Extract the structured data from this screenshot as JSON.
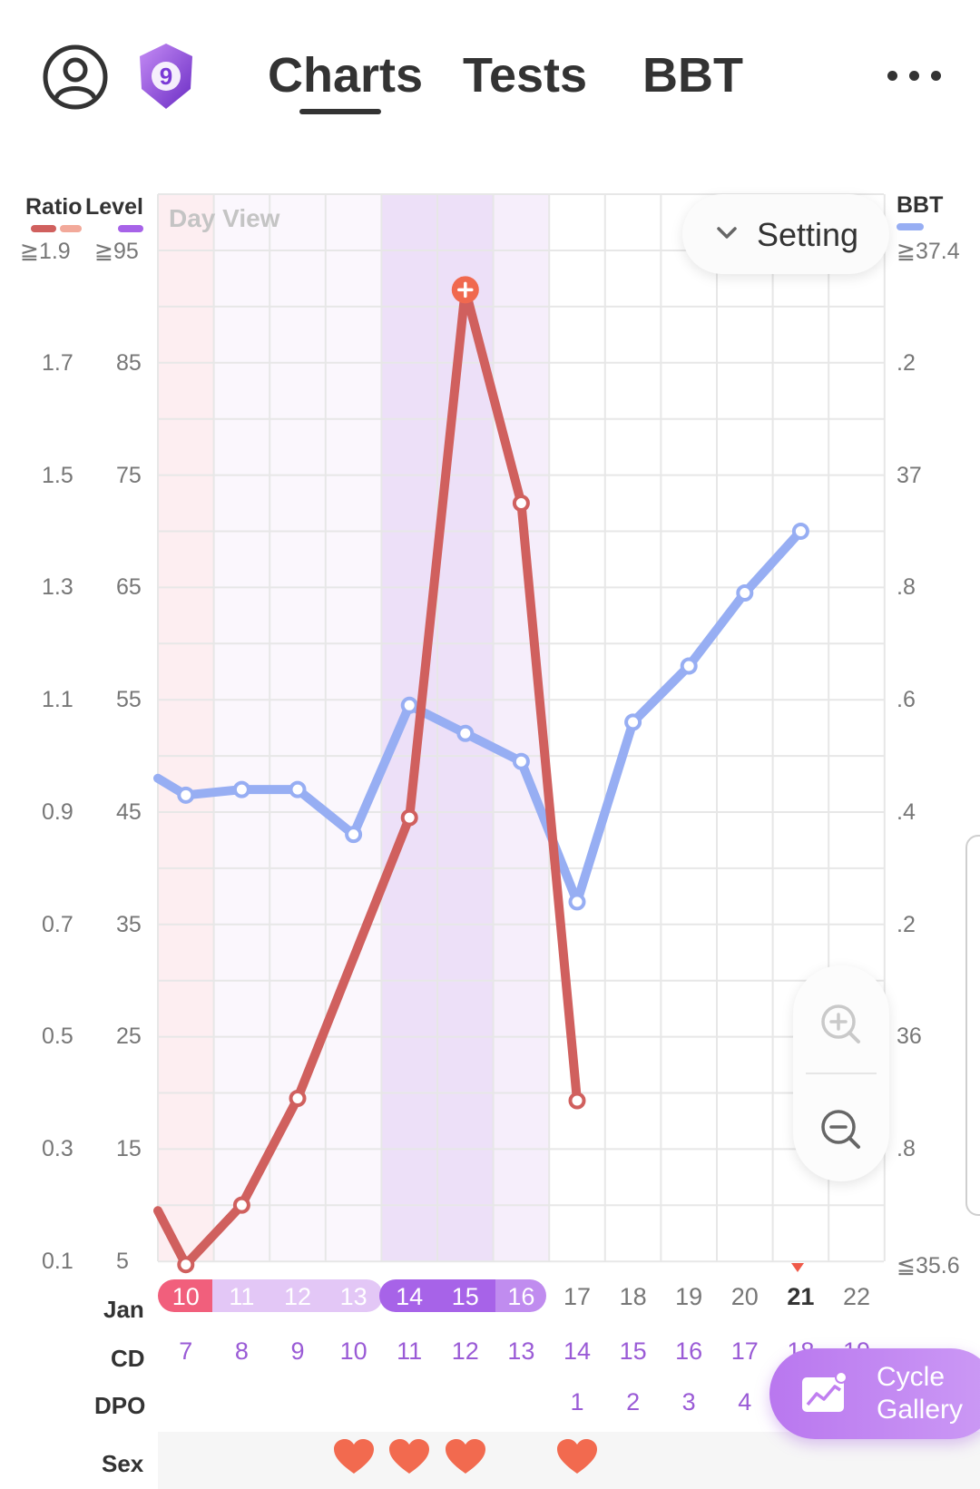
{
  "header": {
    "badge_number": "9",
    "tabs": [
      {
        "label": "Charts",
        "active": true
      },
      {
        "label": "Tests",
        "active": false
      },
      {
        "label": "BBT",
        "active": false
      }
    ],
    "icons": [
      "profile-icon",
      "level-badge-icon",
      "more-icon"
    ]
  },
  "axis": {
    "ratio_label": "Ratio",
    "level_label": "Level",
    "bbt_label": "BBT",
    "ratio_top": "≧1.9",
    "level_top": "≧95",
    "bbt_top": "≧37.4",
    "bbt_bottom": "≦35.6",
    "ratio_ticks": [
      "1.7",
      "1.5",
      "1.3",
      "1.1",
      "0.9",
      "0.7",
      "0.5",
      "0.3",
      "0.1"
    ],
    "level_ticks": [
      "85",
      "75",
      "65",
      "55",
      "45",
      "35",
      "25",
      "15",
      "5"
    ],
    "bbt_ticks": [
      ".2",
      "37",
      ".8",
      ".6",
      ".4",
      ".2",
      "36",
      ".8"
    ]
  },
  "day_view": "Day View",
  "setting": {
    "label": "Setting"
  },
  "rows": {
    "month": "Jan",
    "cd_label": "CD",
    "dpo_label": "DPO",
    "sex_label": "Sex",
    "dates": [
      "10",
      "11",
      "12",
      "13",
      "14",
      "15",
      "16",
      "17",
      "18",
      "19",
      "20",
      "21",
      "22"
    ],
    "today": "21",
    "cd": [
      "7",
      "8",
      "9",
      "10",
      "11",
      "12",
      "13",
      "14",
      "15",
      "16",
      "17",
      "18",
      "19"
    ],
    "dpo": [
      "",
      "",
      "",
      "",
      "",
      "",
      "",
      "1",
      "2",
      "3",
      "4",
      "",
      ""
    ],
    "sex": [
      false,
      false,
      false,
      true,
      true,
      true,
      false,
      true,
      false,
      false,
      false,
      false,
      false
    ]
  },
  "gallery": {
    "line1": "Cycle",
    "line2": "Gallery"
  },
  "colors": {
    "lh_line": "#d0605e",
    "bbt_line": "#97aef3",
    "peak_marker": "#f0694f",
    "period_band": "#fdeef1",
    "fertile_light": "#f6eefb",
    "fertile_dark": "#ede0f8",
    "heart": "#f26a4f"
  },
  "chart_data": {
    "type": "line",
    "categories": [
      "Jan 10",
      "Jan 11",
      "Jan 12",
      "Jan 13",
      "Jan 14",
      "Jan 15",
      "Jan 16",
      "Jan 17",
      "Jan 18",
      "Jan 19",
      "Jan 20",
      "Jan 21",
      "Jan 22"
    ],
    "series": [
      {
        "axis": "level",
        "values": [
          4.7,
          10,
          19.5,
          null,
          44.5,
          91.5,
          72.5,
          19.3,
          null,
          null,
          null,
          null,
          null
        ],
        "leading_value": 9.5,
        "peak_index": 5
      },
      {
        "axis": "bbt",
        "values": [
          36.43,
          36.44,
          36.44,
          36.36,
          36.59,
          36.54,
          36.49,
          36.24,
          36.56,
          36.66,
          36.79,
          36.9,
          null
        ],
        "leading_value": 36.46
      }
    ],
    "ylim_level": [
      5,
      95
    ],
    "ylim_ratio": [
      0.1,
      1.9
    ],
    "ylim_bbt": [
      35.6,
      37.4
    ],
    "grid": true
  }
}
